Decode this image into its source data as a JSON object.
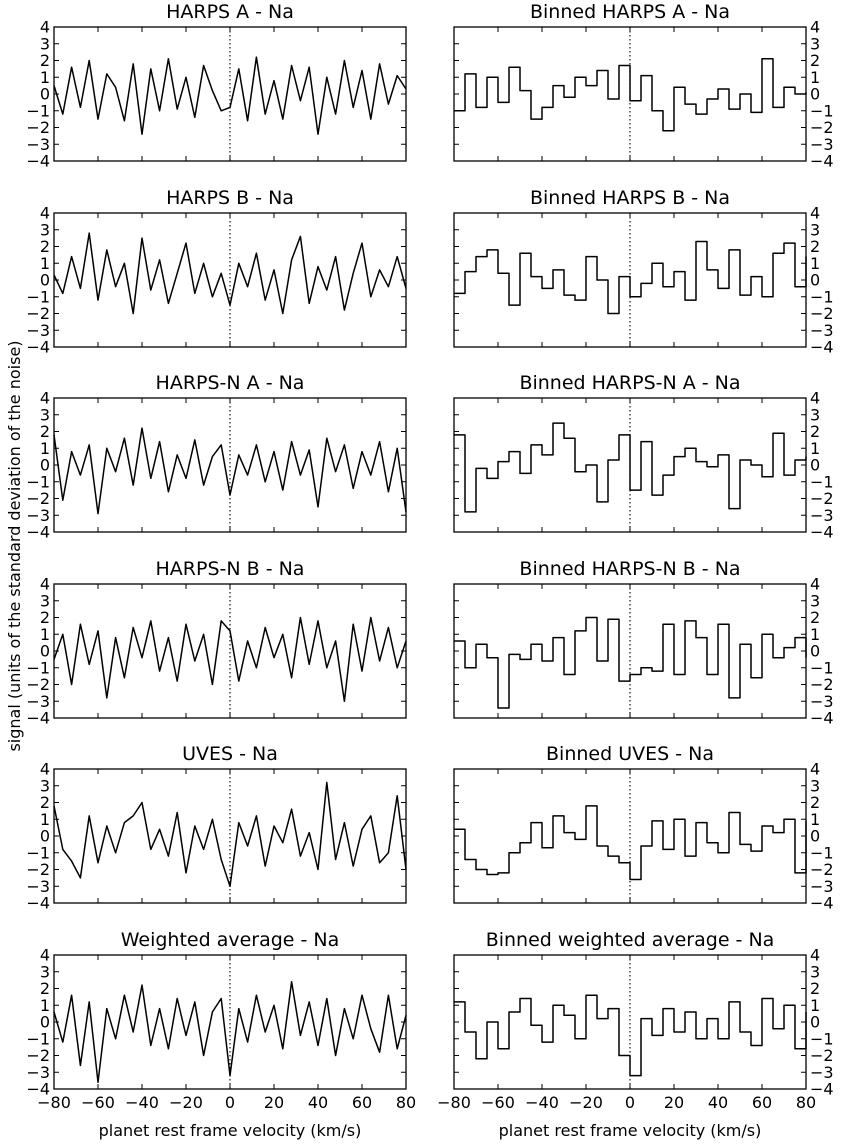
{
  "figure": {
    "ylabel": "signal (units of the standard deviation of the noise)",
    "xlabel": "planet rest frame velocity (km/s)"
  },
  "chart_data": [
    {
      "type": "line",
      "title": "HARPS A - Na",
      "xlim": [
        -80,
        80
      ],
      "ylim": [
        -4,
        4
      ],
      "xticks": [],
      "yticks": [
        -4,
        -3,
        -2,
        -1,
        0,
        1,
        2,
        3,
        4
      ],
      "marker_x": 0,
      "x": [
        -80,
        -76,
        -72,
        -68,
        -64,
        -60,
        -56,
        -52,
        -48,
        -44,
        -40,
        -36,
        -32,
        -28,
        -24,
        -20,
        -16,
        -12,
        -8,
        -4,
        0,
        4,
        8,
        12,
        16,
        20,
        24,
        28,
        32,
        36,
        40,
        44,
        48,
        52,
        56,
        60,
        64,
        68,
        72,
        76,
        80
      ],
      "y": [
        0.5,
        -1.2,
        1.6,
        -0.8,
        2.0,
        -1.5,
        1.2,
        0.4,
        -1.6,
        1.8,
        -2.4,
        1.5,
        -1.0,
        2.1,
        -0.9,
        1.0,
        -1.4,
        1.7,
        0.2,
        -1.0,
        -0.8,
        1.5,
        -1.6,
        2.2,
        -1.2,
        0.8,
        -1.5,
        1.7,
        -0.4,
        1.6,
        -2.4,
        1.0,
        -1.2,
        2.0,
        -0.8,
        1.4,
        -1.5,
        1.8,
        -0.6,
        1.1,
        0.3
      ]
    },
    {
      "type": "step",
      "title": "Binned HARPS A - Na",
      "xlim": [
        -80,
        80
      ],
      "ylim": [
        -4,
        4
      ],
      "xticks": [],
      "yticks": [
        -4,
        -3,
        -2,
        -1,
        0,
        1,
        2,
        3,
        4
      ],
      "marker_x": 0,
      "x": [
        -80,
        -75,
        -70,
        -65,
        -60,
        -55,
        -50,
        -45,
        -40,
        -35,
        -30,
        -25,
        -20,
        -15,
        -10,
        -5,
        0,
        5,
        10,
        15,
        20,
        25,
        30,
        35,
        40,
        45,
        50,
        55,
        60,
        65,
        70,
        75,
        80
      ],
      "y": [
        -1.0,
        1.2,
        -0.8,
        1.0,
        -0.5,
        1.6,
        0.2,
        -1.5,
        -0.8,
        0.5,
        -0.2,
        1.0,
        0.5,
        1.4,
        -0.3,
        1.7,
        -0.4,
        1.1,
        -1.0,
        -2.2,
        0.4,
        -0.6,
        -1.2,
        -0.3,
        0.3,
        -0.9,
        0.0,
        -1.1,
        2.1,
        -0.8,
        0.4,
        0.0,
        0.1
      ]
    },
    {
      "type": "line",
      "title": "HARPS B - Na",
      "xlim": [
        -80,
        80
      ],
      "ylim": [
        -4,
        4
      ],
      "xticks": [],
      "yticks": [
        -4,
        -3,
        -2,
        -1,
        0,
        1,
        2,
        3,
        4
      ],
      "marker_x": 0,
      "x": [
        -80,
        -76,
        -72,
        -68,
        -64,
        -60,
        -56,
        -52,
        -48,
        -44,
        -40,
        -36,
        -32,
        -28,
        -24,
        -20,
        -16,
        -12,
        -8,
        -4,
        0,
        4,
        8,
        12,
        16,
        20,
        24,
        28,
        32,
        36,
        40,
        44,
        48,
        52,
        56,
        60,
        64,
        68,
        72,
        76,
        80
      ],
      "y": [
        0.3,
        -0.8,
        1.4,
        -0.5,
        2.8,
        -1.2,
        1.8,
        -0.4,
        1.0,
        -2.0,
        2.5,
        -0.6,
        1.2,
        -1.4,
        0.4,
        2.2,
        -0.8,
        1.0,
        -1.0,
        0.4,
        -1.5,
        1.0,
        -0.4,
        1.6,
        -1.2,
        0.6,
        -2.0,
        1.2,
        2.6,
        -1.4,
        0.8,
        -0.6,
        1.4,
        -1.8,
        0.4,
        2.2,
        -1.0,
        0.6,
        -0.4,
        1.4,
        -0.5
      ]
    },
    {
      "type": "step",
      "title": "Binned HARPS B - Na",
      "xlim": [
        -80,
        80
      ],
      "ylim": [
        -4,
        4
      ],
      "xticks": [],
      "yticks": [
        -4,
        -3,
        -2,
        -1,
        0,
        1,
        2,
        3,
        4
      ],
      "marker_x": 0,
      "x": [
        -80,
        -75,
        -70,
        -65,
        -60,
        -55,
        -50,
        -45,
        -40,
        -35,
        -30,
        -25,
        -20,
        -15,
        -10,
        -5,
        0,
        5,
        10,
        15,
        20,
        25,
        30,
        35,
        40,
        45,
        50,
        55,
        60,
        65,
        70,
        75,
        80
      ],
      "y": [
        -0.8,
        0.5,
        1.4,
        1.8,
        0.4,
        -1.5,
        1.6,
        0.2,
        -0.5,
        0.6,
        -0.9,
        -1.2,
        1.4,
        0.0,
        -2.0,
        0.2,
        -1.0,
        -0.2,
        1.0,
        -0.4,
        0.5,
        -1.2,
        2.3,
        0.6,
        -0.5,
        1.8,
        -0.9,
        0.2,
        -1.0,
        1.6,
        2.2,
        -0.4,
        1.4
      ]
    },
    {
      "type": "line",
      "title": "HARPS-N A - Na",
      "xlim": [
        -80,
        80
      ],
      "ylim": [
        -4,
        4
      ],
      "xticks": [],
      "yticks": [
        -4,
        -3,
        -2,
        -1,
        0,
        1,
        2,
        3,
        4
      ],
      "marker_x": 0,
      "x": [
        -80,
        -76,
        -72,
        -68,
        -64,
        -60,
        -56,
        -52,
        -48,
        -44,
        -40,
        -36,
        -32,
        -28,
        -24,
        -20,
        -16,
        -12,
        -8,
        -4,
        0,
        4,
        8,
        12,
        16,
        20,
        24,
        28,
        32,
        36,
        40,
        44,
        48,
        52,
        56,
        60,
        64,
        68,
        72,
        76,
        80
      ],
      "y": [
        1.8,
        -2.1,
        0.8,
        -0.6,
        1.2,
        -2.9,
        1.0,
        -0.4,
        1.6,
        -1.2,
        2.2,
        -0.8,
        1.4,
        -1.6,
        0.6,
        -0.8,
        1.5,
        -1.2,
        0.5,
        1.2,
        -1.8,
        0.6,
        -0.6,
        1.2,
        -1.0,
        0.8,
        -1.5,
        1.4,
        -0.6,
        0.9,
        -2.5,
        1.6,
        -0.4,
        1.2,
        -1.4,
        0.8,
        -0.6,
        1.4,
        -1.6,
        1.0,
        -2.8
      ]
    },
    {
      "type": "step",
      "title": "Binned HARPS-N A - Na",
      "xlim": [
        -80,
        80
      ],
      "ylim": [
        -4,
        4
      ],
      "xticks": [],
      "yticks": [
        -4,
        -3,
        -2,
        -1,
        0,
        1,
        2,
        3,
        4
      ],
      "marker_x": 0,
      "x": [
        -80,
        -75,
        -70,
        -65,
        -60,
        -55,
        -50,
        -45,
        -40,
        -35,
        -30,
        -25,
        -20,
        -15,
        -10,
        -5,
        0,
        5,
        10,
        15,
        20,
        25,
        30,
        35,
        40,
        45,
        50,
        55,
        60,
        65,
        70,
        75,
        80
      ],
      "y": [
        1.8,
        -2.8,
        -0.2,
        -0.8,
        0.2,
        0.8,
        -0.5,
        1.2,
        0.6,
        2.5,
        1.6,
        -0.4,
        0.0,
        -2.2,
        0.3,
        1.8,
        -1.5,
        1.4,
        -1.8,
        -0.6,
        0.5,
        1.0,
        0.2,
        -0.1,
        0.6,
        -2.6,
        0.3,
        0.0,
        -0.7,
        1.9,
        -0.6,
        0.3,
        0.5
      ]
    },
    {
      "type": "line",
      "title": "HARPS-N B - Na",
      "xlim": [
        -80,
        80
      ],
      "ylim": [
        -4,
        4
      ],
      "xticks": [],
      "yticks": [
        -4,
        -3,
        -2,
        -1,
        0,
        1,
        2,
        3,
        4
      ],
      "marker_x": 0,
      "x": [
        -80,
        -76,
        -72,
        -68,
        -64,
        -60,
        -56,
        -52,
        -48,
        -44,
        -40,
        -36,
        -32,
        -28,
        -24,
        -20,
        -16,
        -12,
        -8,
        -4,
        0,
        4,
        8,
        12,
        16,
        20,
        24,
        28,
        32,
        36,
        40,
        44,
        48,
        52,
        56,
        60,
        64,
        68,
        72,
        76,
        80
      ],
      "y": [
        -0.5,
        1.0,
        -2.0,
        1.6,
        -0.8,
        1.2,
        -2.8,
        0.8,
        -1.6,
        1.4,
        -0.4,
        1.8,
        -1.2,
        0.8,
        -1.8,
        1.6,
        -0.6,
        1.0,
        -2.0,
        1.8,
        1.2,
        -1.8,
        0.6,
        -1.0,
        1.4,
        -0.4,
        1.0,
        -1.6,
        2.0,
        -0.8,
        1.8,
        -1.0,
        0.6,
        -3.0,
        1.6,
        -1.2,
        2.0,
        -0.6,
        1.4,
        -1.0,
        0.6
      ]
    },
    {
      "type": "step",
      "title": "Binned HARPS-N B - Na",
      "xlim": [
        -80,
        80
      ],
      "ylim": [
        -4,
        4
      ],
      "xticks": [],
      "yticks": [
        -4,
        -3,
        -2,
        -1,
        0,
        1,
        2,
        3,
        4
      ],
      "marker_x": 0,
      "x": [
        -80,
        -75,
        -70,
        -65,
        -60,
        -55,
        -50,
        -45,
        -40,
        -35,
        -30,
        -25,
        -20,
        -15,
        -10,
        -5,
        0,
        5,
        10,
        15,
        20,
        25,
        30,
        35,
        40,
        45,
        50,
        55,
        60,
        65,
        70,
        75,
        80
      ],
      "y": [
        0.6,
        -1.0,
        0.4,
        -0.4,
        -3.4,
        -0.2,
        -0.5,
        0.4,
        -0.6,
        0.8,
        -1.4,
        1.2,
        2.0,
        -0.6,
        1.9,
        -1.8,
        -1.4,
        -1.0,
        -1.2,
        1.6,
        -1.4,
        1.8,
        0.8,
        -1.4,
        1.6,
        -2.8,
        0.4,
        -1.6,
        1.0,
        -0.4,
        0.2,
        0.8,
        -0.4
      ]
    },
    {
      "type": "line",
      "title": "UVES - Na",
      "xlim": [
        -80,
        80
      ],
      "ylim": [
        -4,
        4
      ],
      "xticks": [],
      "yticks": [
        -4,
        -3,
        -2,
        -1,
        0,
        1,
        2,
        3,
        4
      ],
      "marker_x": 0,
      "x": [
        -80,
        -76,
        -72,
        -68,
        -64,
        -60,
        -56,
        -52,
        -48,
        -44,
        -40,
        -36,
        -32,
        -28,
        -24,
        -20,
        -16,
        -12,
        -8,
        -4,
        0,
        4,
        8,
        12,
        16,
        20,
        24,
        28,
        32,
        36,
        40,
        44,
        48,
        52,
        56,
        60,
        64,
        68,
        72,
        76,
        80
      ],
      "y": [
        1.8,
        -0.8,
        -1.5,
        -2.5,
        1.2,
        -1.6,
        0.6,
        -1.0,
        0.8,
        1.2,
        2.0,
        -0.8,
        0.4,
        -1.2,
        1.4,
        -2.2,
        0.6,
        -0.8,
        1.0,
        -1.4,
        -3.0,
        0.8,
        -0.6,
        1.2,
        -1.8,
        0.6,
        -0.4,
        1.6,
        -1.2,
        0.2,
        -2.0,
        3.2,
        -1.4,
        0.8,
        -1.8,
        0.4,
        1.2,
        -1.6,
        -1.0,
        2.4,
        -2.0
      ]
    },
    {
      "type": "step",
      "title": "Binned UVES - Na",
      "xlim": [
        -80,
        80
      ],
      "ylim": [
        -4,
        4
      ],
      "xticks": [],
      "yticks": [
        -4,
        -3,
        -2,
        -1,
        0,
        1,
        2,
        3,
        4
      ],
      "marker_x": 0,
      "x": [
        -80,
        -75,
        -70,
        -65,
        -60,
        -55,
        -50,
        -45,
        -40,
        -35,
        -30,
        -25,
        -20,
        -15,
        -10,
        -5,
        0,
        5,
        10,
        15,
        20,
        25,
        30,
        35,
        40,
        45,
        50,
        55,
        60,
        65,
        70,
        75,
        80
      ],
      "y": [
        0.4,
        -1.4,
        -2.0,
        -2.3,
        -2.2,
        -1.0,
        -0.4,
        0.8,
        -0.7,
        1.2,
        0.2,
        -0.2,
        1.8,
        -0.6,
        -1.2,
        -1.6,
        -2.6,
        -0.6,
        0.9,
        -0.8,
        1.0,
        -1.2,
        0.8,
        -0.4,
        -1.0,
        1.4,
        -0.5,
        -0.9,
        0.6,
        0.2,
        1.0,
        -2.2,
        0.9
      ]
    },
    {
      "type": "line",
      "title": "Weighted average - Na",
      "xlim": [
        -80,
        80
      ],
      "ylim": [
        -4,
        4
      ],
      "xticks": [
        -80,
        -60,
        -40,
        -20,
        0,
        20,
        40,
        60,
        80
      ],
      "yticks": [
        -4,
        -3,
        -2,
        -1,
        0,
        1,
        2,
        3,
        4
      ],
      "marker_x": 0,
      "x": [
        -80,
        -76,
        -72,
        -68,
        -64,
        -60,
        -56,
        -52,
        -48,
        -44,
        -40,
        -36,
        -32,
        -28,
        -24,
        -20,
        -16,
        -12,
        -8,
        -4,
        0,
        4,
        8,
        12,
        16,
        20,
        24,
        28,
        32,
        36,
        40,
        44,
        48,
        52,
        56,
        60,
        64,
        68,
        72,
        76,
        80
      ],
      "y": [
        0.6,
        -1.2,
        1.6,
        -2.6,
        1.2,
        -3.6,
        0.8,
        -1.0,
        1.6,
        -0.6,
        2.2,
        -1.4,
        0.8,
        -1.6,
        1.4,
        -0.8,
        1.2,
        -2.0,
        0.6,
        1.4,
        -3.2,
        0.8,
        -1.2,
        1.6,
        -0.6,
        1.0,
        -1.6,
        2.4,
        -0.8,
        1.2,
        -1.4,
        1.4,
        -2.0,
        0.8,
        -1.0,
        1.6,
        -0.4,
        -1.8,
        1.6,
        -1.6,
        0.4
      ]
    },
    {
      "type": "step",
      "title": "Binned weighted average - Na",
      "xlim": [
        -80,
        80
      ],
      "ylim": [
        -4,
        4
      ],
      "xticks": [
        -80,
        -60,
        -40,
        -20,
        0,
        20,
        40,
        60,
        80
      ],
      "yticks": [
        -4,
        -3,
        -2,
        -1,
        0,
        1,
        2,
        3,
        4
      ],
      "marker_x": 0,
      "x": [
        -80,
        -75,
        -70,
        -65,
        -60,
        -55,
        -50,
        -45,
        -40,
        -35,
        -30,
        -25,
        -20,
        -15,
        -10,
        -5,
        0,
        5,
        10,
        15,
        20,
        25,
        30,
        35,
        40,
        45,
        50,
        55,
        60,
        65,
        70,
        75,
        80
      ],
      "y": [
        1.2,
        -0.6,
        -2.2,
        0.0,
        -1.6,
        0.6,
        1.4,
        -0.2,
        -1.2,
        1.0,
        0.4,
        -1.0,
        1.6,
        0.2,
        0.8,
        -2.0,
        -3.2,
        0.2,
        -0.8,
        0.8,
        -0.6,
        0.6,
        -1.0,
        0.2,
        -1.0,
        1.2,
        -0.6,
        -1.4,
        1.4,
        -0.4,
        1.0,
        -1.6,
        0.6
      ]
    }
  ]
}
